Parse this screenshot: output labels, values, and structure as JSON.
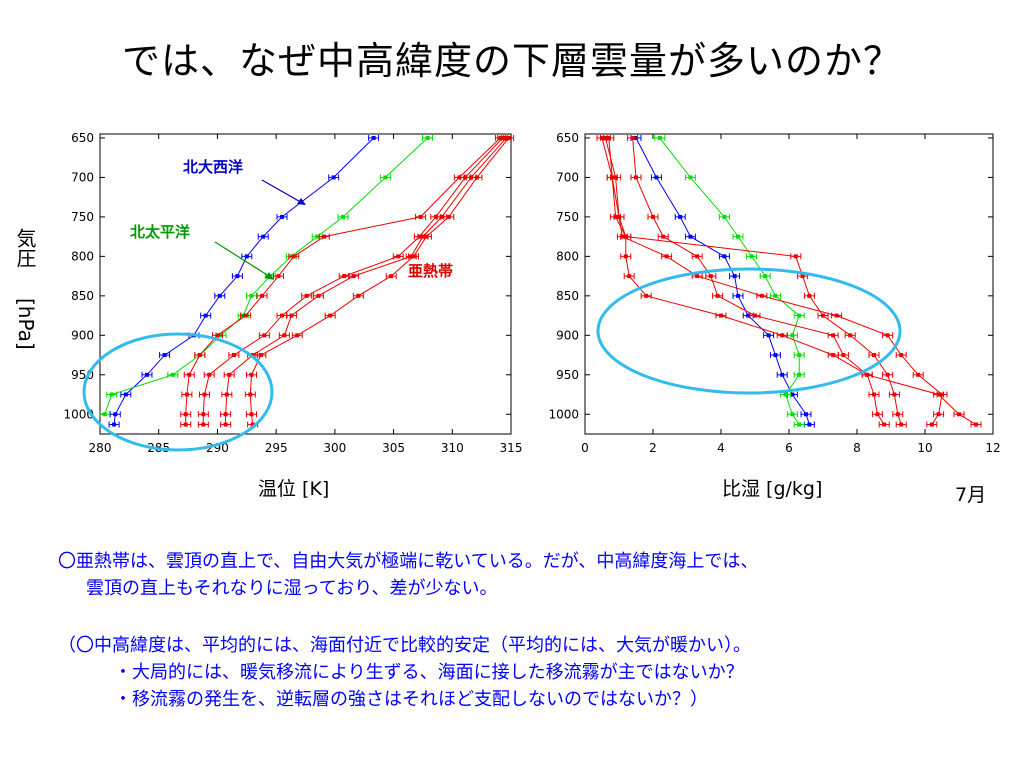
{
  "slide": {
    "title": "では、なぜ中高緯度の下層雲量が多いのか？",
    "ylabel_top": "気圧",
    "ylabel_unit": "[hPa]",
    "month": "7月",
    "text1_line1": "〇亜熱帯は、雲頂の直上で、自由大気が極端に乾いている。だが、中高緯度海上では、",
    "text1_line2": "雲頂の直上もそれなりに湿っており、差が少ない。",
    "text2_line1": "（〇中高緯度は、平均的には、海面付近で比較的安定（平均的には、大気が暖かい）。",
    "text2_line2": "・大局的には、暖気移流により生ずる、海面に接した移流霧が主ではないか？",
    "text2_line3": "・移流霧の発生を、逆転層の強さはそれほど支配しないのではないか？）"
  },
  "colors": {
    "blue": "#0000ff",
    "green": "#00dd00",
    "red": "#ee0000",
    "circle": "#33bbee",
    "ann_blue": "#0000cc",
    "ann_green": "#009900",
    "ann_red": "#dd0000"
  },
  "chart_data": [
    {
      "type": "line",
      "xlabel": "温位  [K]",
      "ylabel": "気圧 [hPa]",
      "xlim": [
        280,
        315
      ],
      "ylim": [
        1025,
        645
      ],
      "xticks": [
        280,
        285,
        290,
        295,
        300,
        305,
        310,
        315
      ],
      "yticks": [
        650,
        700,
        750,
        800,
        850,
        900,
        950,
        1000
      ],
      "annotations": {
        "blue": "北大西洋",
        "green": "北太平洋",
        "red": "亜熱帯"
      },
      "series": [
        {
          "group": "北大西洋",
          "color": "blue",
          "y": [
            1013,
            1000,
            975,
            950,
            925,
            900,
            875,
            850,
            825,
            800,
            775,
            750,
            700,
            650
          ],
          "x": [
            281.2,
            281.3,
            282.2,
            284.0,
            285.5,
            288.0,
            289.0,
            290.2,
            291.7,
            292.5,
            293.9,
            295.5,
            299.9,
            303.3
          ]
        },
        {
          "group": "北太平洋",
          "color": "green",
          "y": [
            1000,
            975,
            950,
            925,
            900,
            875,
            850,
            825,
            800,
            775,
            750,
            700,
            650
          ],
          "x": [
            280.4,
            281.0,
            286.2,
            288.5,
            290.3,
            292.2,
            292.9,
            294.5,
            296.3,
            298.5,
            300.7,
            304.3,
            307.9
          ]
        },
        {
          "group": "亜熱帯",
          "color": "red",
          "y": [
            1013,
            1000,
            975,
            950,
            925,
            900,
            875,
            850,
            825,
            800,
            775,
            750,
            700,
            650
          ],
          "x": [
            287.3,
            287.3,
            287.4,
            287.6,
            288.5,
            290.0,
            292.4,
            293.8,
            295.2,
            296.5,
            299.1,
            307.3,
            310.6,
            314.1
          ]
        },
        {
          "group": "亜熱帯",
          "color": "red",
          "y": [
            1013,
            1000,
            975,
            950,
            925,
            900,
            875,
            850,
            825,
            800,
            775,
            750,
            700,
            650
          ],
          "x": [
            288.8,
            288.8,
            288.9,
            289.3,
            291.4,
            294.0,
            295.5,
            297.6,
            300.8,
            305.4,
            307.2,
            308.6,
            311.1,
            314.3
          ]
        },
        {
          "group": "亜熱帯",
          "color": "red",
          "y": [
            1013,
            1000,
            975,
            950,
            925,
            900,
            875,
            850,
            825,
            800,
            775,
            750,
            700,
            650
          ],
          "x": [
            290.7,
            290.7,
            290.8,
            291.0,
            293.0,
            295.7,
            296.3,
            298.6,
            301.6,
            306.5,
            307.5,
            309.1,
            311.6,
            314.6
          ]
        },
        {
          "group": "亜熱帯",
          "color": "red",
          "y": [
            1013,
            1000,
            975,
            950,
            925,
            900,
            875,
            850,
            825,
            800,
            775,
            750,
            700,
            650
          ],
          "x": [
            293.0,
            292.9,
            292.8,
            292.9,
            293.7,
            296.8,
            299.6,
            302.0,
            304.8,
            306.7,
            307.8,
            309.7,
            312.1,
            314.8
          ]
        }
      ]
    },
    {
      "type": "line",
      "xlabel": "比湿  [g/kg]",
      "xlim": [
        0,
        12
      ],
      "ylim": [
        1025,
        645
      ],
      "xticks": [
        0,
        2,
        4,
        6,
        8,
        10,
        12
      ],
      "yticks": [
        650,
        700,
        750,
        800,
        850,
        900,
        950,
        1000
      ],
      "series": [
        {
          "group": "北大西洋",
          "color": "blue",
          "y": [
            1013,
            1000,
            975,
            950,
            925,
            900,
            875,
            850,
            825,
            800,
            775,
            750,
            700,
            650
          ],
          "x": [
            6.6,
            6.5,
            6.1,
            5.8,
            5.6,
            5.4,
            4.8,
            4.5,
            4.4,
            4.1,
            3.1,
            2.8,
            2.1,
            1.5
          ]
        },
        {
          "group": "北太平洋",
          "color": "green",
          "y": [
            1013,
            1000,
            975,
            950,
            925,
            900,
            875,
            850,
            825,
            800,
            775,
            750,
            700,
            650
          ],
          "x": [
            6.3,
            6.1,
            5.9,
            6.3,
            6.3,
            6.1,
            6.3,
            5.6,
            5.3,
            4.9,
            4.5,
            4.1,
            3.1,
            2.2
          ]
        },
        {
          "group": "亜熱帯",
          "color": "red",
          "y": [
            1013,
            1000,
            975,
            950,
            925,
            900,
            875,
            850,
            825,
            800,
            775,
            750,
            700,
            650
          ],
          "x": [
            8.8,
            8.6,
            8.5,
            8.3,
            7.6,
            7.3,
            5.0,
            3.9,
            3.7,
            3.3,
            2.3,
            2.0,
            1.5,
            1.4
          ]
        },
        {
          "group": "亜熱帯",
          "color": "red",
          "y": [
            1013,
            1000,
            975,
            950,
            925,
            900,
            875,
            850,
            825,
            800,
            775,
            750,
            700,
            650
          ],
          "x": [
            9.3,
            9.2,
            9.1,
            8.9,
            8.5,
            7.8,
            7.0,
            6.6,
            6.4,
            6.2,
            1.2,
            0.9,
            0.8,
            0.7
          ]
        },
        {
          "group": "亜熱帯",
          "color": "red",
          "y": [
            1013,
            1000,
            975,
            950,
            925,
            900,
            875,
            850,
            825,
            800,
            775,
            750,
            700,
            650
          ],
          "x": [
            10.2,
            10.4,
            10.5,
            9.8,
            9.3,
            8.9,
            7.4,
            5.2,
            3.3,
            2.4,
            1.1,
            1.0,
            0.8,
            0.5
          ]
        },
        {
          "group": "亜熱帯",
          "color": "red",
          "y": [
            1013,
            1000,
            975,
            950,
            925,
            900,
            875,
            850,
            825,
            800,
            775,
            750,
            700,
            650
          ],
          "x": [
            11.5,
            11.0,
            10.4,
            8.3,
            7.3,
            5.8,
            4.0,
            1.8,
            1.3,
            1.2,
            1.2,
            1.0,
            0.9,
            0.6
          ]
        }
      ]
    }
  ]
}
